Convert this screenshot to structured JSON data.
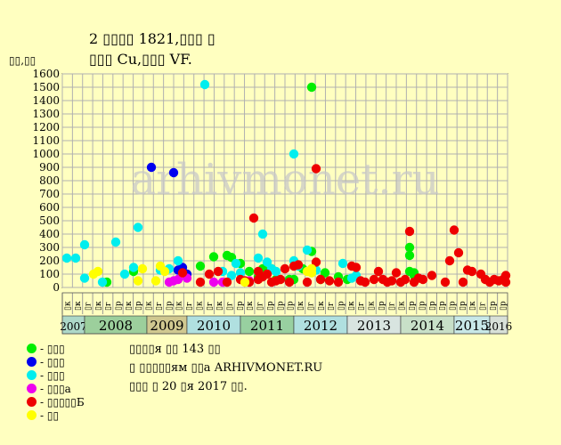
{
  "title": {
    "line1": "2 ▯▯▯▯ 1821,▯▯▯ ▯",
    "line2": "▯▯▯ Cu,▯▯▯ VF."
  },
  "ylabel": "▯▯,▯▯",
  "watermark": "arhivmonet.ru",
  "legend": [
    {
      "label": "- ▯▯▯",
      "color": "#00ee00"
    },
    {
      "label": "- ▯▯▯",
      "color": "#0000ee"
    },
    {
      "label": "- ▯▯▯",
      "color": "#00eeee"
    },
    {
      "label": "- ▯▯▯а",
      "color": "#ee00ee"
    },
    {
      "label": "- ▯▯▯▯▯Б",
      "color": "#ee0000"
    },
    {
      "label": "- ▯▯",
      "color": "#ffff00"
    }
  ],
  "info": [
    "▯▯▯▯я ▯▯ 143 ▯▯",
    "▯ ▯▯▯▯▯ям ▯▯а ARHIVMONET.RU",
    "▯▯▯ ▯ 20 ▯я 2017 ▯▯."
  ],
  "chart_data": {
    "type": "scatter",
    "ylim": [
      0,
      1600
    ],
    "yticks": [
      0,
      100,
      200,
      300,
      400,
      500,
      600,
      700,
      800,
      900,
      1000,
      1100,
      1200,
      1300,
      1400,
      1500,
      1600
    ],
    "grid": true,
    "half_year_labels": [
      "▯к",
      "▯к",
      "▯г",
      "▯к",
      "▯г",
      "▯р",
      "▯к",
      "▯р",
      "▯к",
      "▯г",
      "▯р",
      "▯к",
      "▯г",
      "▯к",
      "▯г",
      "▯к",
      "▯г",
      "▯р",
      "▯к",
      "▯г",
      "▯р",
      "▯р",
      "▯р",
      "▯к",
      "▯г",
      "▯к",
      "▯г",
      "▯р",
      "▯к",
      "▯г",
      "▯к",
      "▯р",
      "▯г",
      "▯к",
      "▯р",
      "▯р",
      "▯р",
      "▯р",
      "▯р",
      "▯р",
      "▯к",
      "▯г",
      "▯р",
      "▯р"
    ],
    "years": [
      {
        "label": "2007",
        "color": "#add8c8",
        "t0": 0.0,
        "t1": 0.05
      },
      {
        "label": "2008",
        "color": "#9ccf9c",
        "t0": 0.05,
        "t1": 0.19
      },
      {
        "label": "2009",
        "color": "#d0c890",
        "t0": 0.19,
        "t1": 0.28
      },
      {
        "label": "2010",
        "color": "#b0e0e0",
        "t0": 0.28,
        "t1": 0.4
      },
      {
        "label": "2011",
        "color": "#98d0a0",
        "t0": 0.4,
        "t1": 0.52
      },
      {
        "label": "2012",
        "color": "#b0e0e0",
        "t0": 0.52,
        "t1": 0.64
      },
      {
        "label": "2013",
        "color": "#d8e4e0",
        "t0": 0.64,
        "t1": 0.76
      },
      {
        "label": "2014",
        "color": "#c8e0c8",
        "t0": 0.76,
        "t1": 0.88
      },
      {
        "label": "2015",
        "color": "#c8e8e8",
        "t0": 0.88,
        "t1": 0.96
      },
      {
        "label": "2016",
        "color": "#d8e0d8",
        "t0": 0.96,
        "t1": 1.0
      }
    ],
    "series": [
      {
        "name": "- ▯▯▯",
        "color": "#00ee00",
        "points": [
          [
            0.1,
            40
          ],
          [
            0.16,
            120
          ],
          [
            0.31,
            160
          ],
          [
            0.34,
            230
          ],
          [
            0.37,
            240
          ],
          [
            0.38,
            225
          ],
          [
            0.4,
            180
          ],
          [
            0.42,
            120
          ],
          [
            0.44,
            80
          ],
          [
            0.45,
            140
          ],
          [
            0.47,
            140
          ],
          [
            0.48,
            60
          ],
          [
            0.51,
            60
          ],
          [
            0.52,
            60
          ],
          [
            0.54,
            140
          ],
          [
            0.56,
            1500
          ],
          [
            0.56,
            270
          ],
          [
            0.58,
            60
          ],
          [
            0.59,
            110
          ],
          [
            0.62,
            80
          ],
          [
            0.64,
            60
          ],
          [
            0.78,
            120
          ],
          [
            0.78,
            300
          ],
          [
            0.78,
            240
          ],
          [
            0.79,
            110
          ],
          [
            0.79,
            90
          ]
        ]
      },
      {
        "name": "- ▯▯▯",
        "color": "#0000ee",
        "points": [
          [
            0.2,
            900
          ],
          [
            0.25,
            860
          ],
          [
            0.26,
            130
          ],
          [
            0.27,
            150
          ],
          [
            0.28,
            100
          ]
        ]
      },
      {
        "name": "- ▯▯▯",
        "color": "#00eeee",
        "points": [
          [
            0.01,
            220
          ],
          [
            0.03,
            220
          ],
          [
            0.05,
            320
          ],
          [
            0.05,
            70
          ],
          [
            0.09,
            40
          ],
          [
            0.12,
            340
          ],
          [
            0.14,
            100
          ],
          [
            0.16,
            150
          ],
          [
            0.17,
            450
          ],
          [
            0.22,
            130
          ],
          [
            0.24,
            140
          ],
          [
            0.26,
            200
          ],
          [
            0.32,
            1520
          ],
          [
            0.36,
            120
          ],
          [
            0.38,
            90
          ],
          [
            0.39,
            180
          ],
          [
            0.4,
            110
          ],
          [
            0.44,
            220
          ],
          [
            0.45,
            400
          ],
          [
            0.46,
            190
          ],
          [
            0.47,
            140
          ],
          [
            0.48,
            120
          ],
          [
            0.52,
            1000
          ],
          [
            0.52,
            200
          ],
          [
            0.53,
            160
          ],
          [
            0.55,
            280
          ],
          [
            0.57,
            130
          ],
          [
            0.63,
            180
          ],
          [
            0.65,
            70
          ],
          [
            0.66,
            90
          ]
        ]
      },
      {
        "name": "- ▯▯▯а",
        "color": "#ee00ee",
        "points": [
          [
            0.24,
            40
          ],
          [
            0.25,
            50
          ],
          [
            0.26,
            60
          ],
          [
            0.28,
            70
          ],
          [
            0.34,
            40
          ],
          [
            0.36,
            40
          ],
          [
            0.42,
            50
          ]
        ]
      },
      {
        "name": "- ▯▯▯▯▯Б",
        "color": "#ee0000",
        "points": [
          [
            0.27,
            110
          ],
          [
            0.31,
            40
          ],
          [
            0.33,
            100
          ],
          [
            0.35,
            120
          ],
          [
            0.37,
            40
          ],
          [
            0.4,
            60
          ],
          [
            0.41,
            50
          ],
          [
            0.42,
            40
          ],
          [
            0.43,
            520
          ],
          [
            0.44,
            120
          ],
          [
            0.44,
            60
          ],
          [
            0.45,
            80
          ],
          [
            0.46,
            100
          ],
          [
            0.47,
            40
          ],
          [
            0.48,
            50
          ],
          [
            0.49,
            60
          ],
          [
            0.5,
            140
          ],
          [
            0.51,
            40
          ],
          [
            0.52,
            160
          ],
          [
            0.53,
            170
          ],
          [
            0.55,
            40
          ],
          [
            0.57,
            890
          ],
          [
            0.57,
            190
          ],
          [
            0.58,
            60
          ],
          [
            0.6,
            50
          ],
          [
            0.62,
            40
          ],
          [
            0.65,
            160
          ],
          [
            0.66,
            150
          ],
          [
            0.67,
            50
          ],
          [
            0.68,
            40
          ],
          [
            0.7,
            60
          ],
          [
            0.71,
            120
          ],
          [
            0.72,
            60
          ],
          [
            0.73,
            40
          ],
          [
            0.74,
            50
          ],
          [
            0.75,
            110
          ],
          [
            0.76,
            40
          ],
          [
            0.77,
            60
          ],
          [
            0.78,
            420
          ],
          [
            0.79,
            40
          ],
          [
            0.8,
            70
          ],
          [
            0.81,
            60
          ],
          [
            0.83,
            90
          ],
          [
            0.86,
            40
          ],
          [
            0.87,
            200
          ],
          [
            0.88,
            430
          ],
          [
            0.89,
            260
          ],
          [
            0.9,
            40
          ],
          [
            0.91,
            130
          ],
          [
            0.92,
            120
          ],
          [
            0.94,
            100
          ],
          [
            0.95,
            60
          ],
          [
            0.96,
            40
          ],
          [
            0.97,
            60
          ],
          [
            0.98,
            50
          ],
          [
            0.99,
            60
          ],
          [
            1.0,
            90
          ],
          [
            1.02,
            40
          ]
        ]
      },
      {
        "name": "- ▯▯",
        "color": "#ffff00",
        "points": [
          [
            0.07,
            100
          ],
          [
            0.08,
            120
          ],
          [
            0.17,
            50
          ],
          [
            0.18,
            140
          ],
          [
            0.21,
            50
          ],
          [
            0.22,
            160
          ],
          [
            0.23,
            120
          ],
          [
            0.41,
            40
          ],
          [
            0.55,
            120
          ],
          [
            0.56,
            140
          ],
          [
            0.56,
            110
          ]
        ]
      }
    ]
  }
}
